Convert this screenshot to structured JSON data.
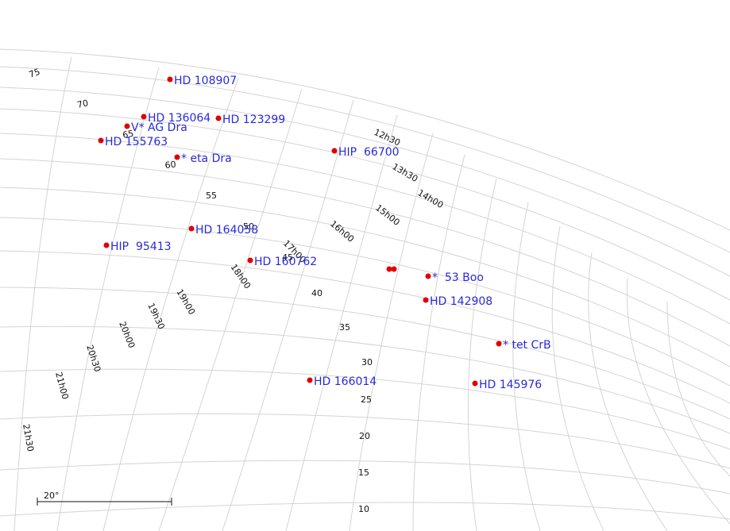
{
  "colors": {
    "grid": "#d4d4d4",
    "star_marker": "#e00000",
    "star_label": "#2a2ad8",
    "coord_label": "#111111"
  },
  "dec_labels": [
    "75",
    "70",
    "65",
    "60",
    "55",
    "50",
    "45",
    "40",
    "35",
    "30",
    "25",
    "20",
    "15",
    "10"
  ],
  "ra_labels": [
    "12h30",
    "13h30",
    "14h00",
    "15h00",
    "16h00",
    "17h00",
    "18h00",
    "19h00",
    "19h30",
    "20h00",
    "20h30",
    "21h00",
    "21h30"
  ],
  "stars": [
    {
      "name": "HD 108907"
    },
    {
      "name": "HD 136064"
    },
    {
      "name": "HD 123299"
    },
    {
      "name": "V* AG Dra"
    },
    {
      "name": "HD 155763"
    },
    {
      "name": "* eta Dra"
    },
    {
      "name": "HIP  66700"
    },
    {
      "name": "HD 164058"
    },
    {
      "name": "HIP  95413"
    },
    {
      "name": "HD 160762"
    },
    {
      "name": "*  53 Boo"
    },
    {
      "name": "HD 142908"
    },
    {
      "name": "* tet CrB"
    },
    {
      "name": "HD 166014"
    },
    {
      "name": "HD 145976"
    },
    {
      "name": ""
    },
    {
      "name": ""
    }
  ],
  "scale_bar": {
    "label": "20°"
  }
}
